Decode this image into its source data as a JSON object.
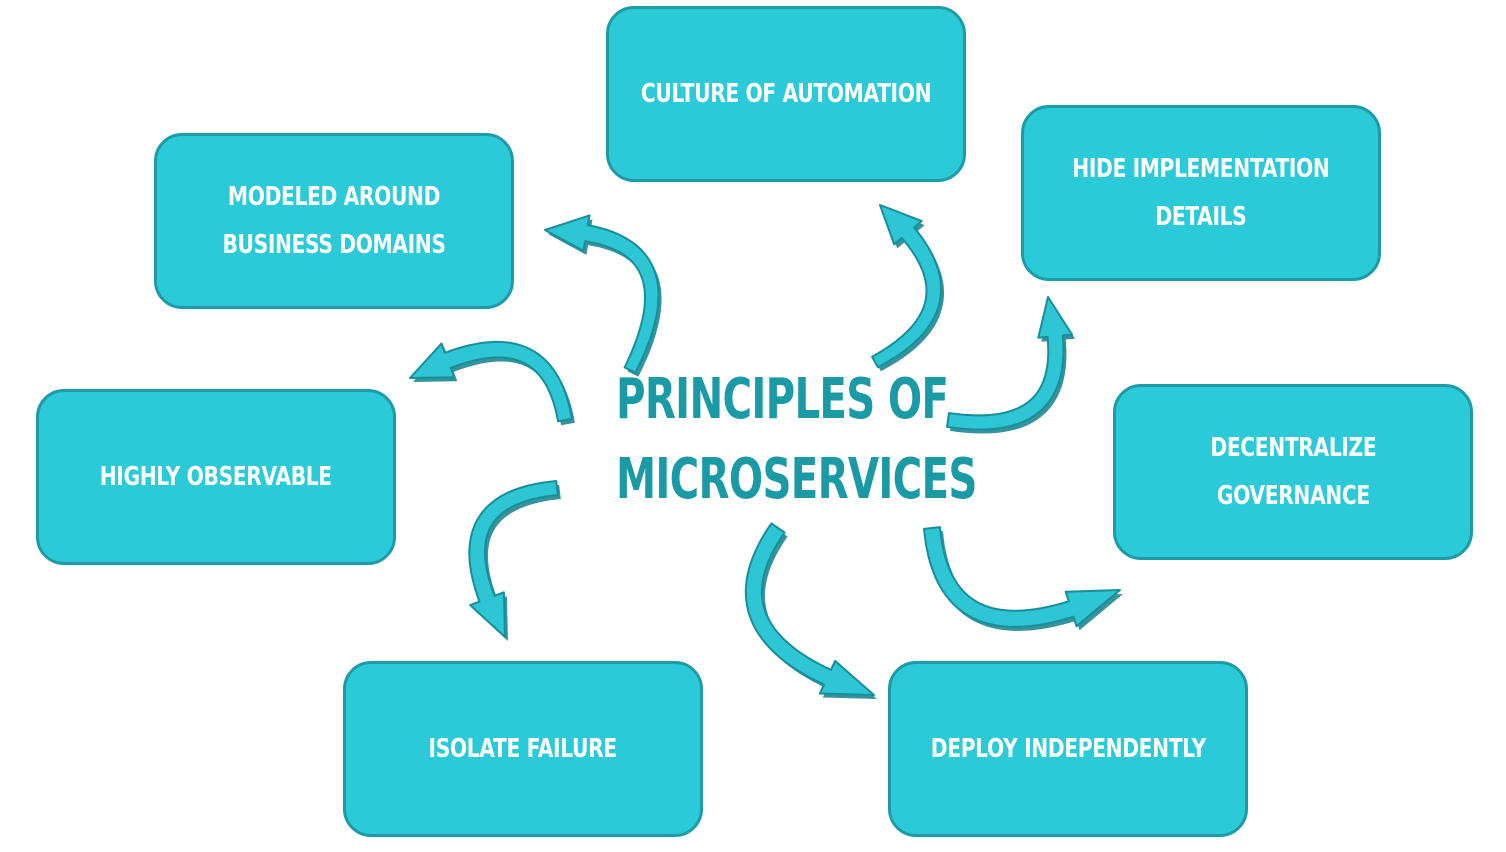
{
  "diagram": {
    "title_line1": "PRINCIPLES OF",
    "title_line2": "MICROSERVICES",
    "nodes": {
      "automation": {
        "lines": [
          "CULTURE OF AUTOMATION"
        ]
      },
      "hide": {
        "lines": [
          "HIDE IMPLEMENTATION",
          "DETAILS"
        ]
      },
      "domains": {
        "lines": [
          "MODELED AROUND",
          "BUSINESS DOMAINS"
        ]
      },
      "decentral": {
        "lines": [
          "DECENTRALIZE",
          "GOVERNANCE"
        ]
      },
      "observe": {
        "lines": [
          "HIGHLY OBSERVABLE"
        ]
      },
      "isolate": {
        "lines": [
          "ISOLATE FAILURE"
        ]
      },
      "deploy": {
        "lines": [
          "DEPLOY INDEPENDENTLY"
        ]
      }
    }
  },
  "colors": {
    "box_fill": "#2acad8",
    "box_border": "#1d9ba7",
    "box_text": "#ffffff",
    "title_text": "#1a9aa5",
    "arrow_fill": "#2ec6d4",
    "arrow_stroke": "#178f9b",
    "arrow_shadow": "#137f8a"
  }
}
